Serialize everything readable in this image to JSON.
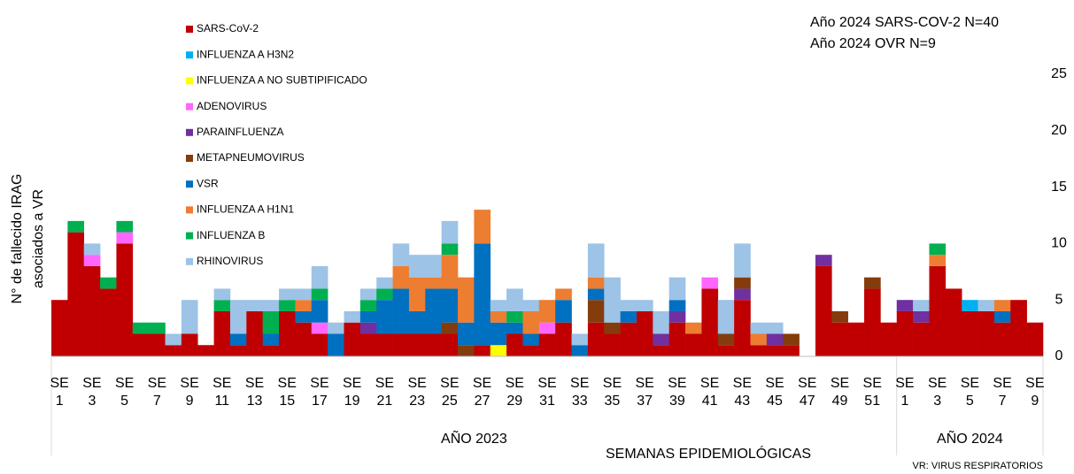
{
  "chart_data": {
    "type": "bar",
    "stacked": true,
    "y_label": "N° de fallecido IRAG asociados a VR",
    "x_label": "SEMANAS EPIDEMIOLÓGICAS",
    "annotations": [
      "Año 2024 SARS-COV-2 N=40",
      "Año 2024 OVR N=9",
      "VR: VIRUS RESPIRATORIOS"
    ],
    "groups": [
      {
        "label": "AÑO 2023",
        "count": 52
      },
      {
        "label": "AÑO 2024",
        "count": 9
      }
    ],
    "categories": [
      "SE 1",
      null,
      "SE 3",
      null,
      "SE 5",
      null,
      "SE 7",
      null,
      "SE 9",
      null,
      "SE 11",
      null,
      "SE 13",
      null,
      "SE 15",
      null,
      "SE 17",
      null,
      "SE 19",
      null,
      "SE 21",
      null,
      "SE 23",
      null,
      "SE 25",
      null,
      "SE 27",
      null,
      "SE 29",
      null,
      "SE 31",
      null,
      "SE 33",
      null,
      "SE 35",
      null,
      "SE 37",
      null,
      "SE 39",
      null,
      "SE 41",
      null,
      "SE 43",
      null,
      "SE 45",
      null,
      "SE 47",
      null,
      "SE 49",
      null,
      "SE 51",
      null,
      "SE 1",
      null,
      "SE 3",
      null,
      "SE 5",
      null,
      "SE 7",
      null,
      "SE 9"
    ],
    "series": [
      {
        "name": "SARS-CoV-2",
        "color": "#c00000",
        "values": [
          5,
          11,
          8,
          6,
          10,
          2,
          2,
          1,
          2,
          1,
          4,
          1,
          4,
          1,
          4,
          3,
          2,
          0,
          3,
          2,
          2,
          2,
          2,
          2,
          2,
          0,
          1,
          0,
          2,
          1,
          2,
          3,
          0,
          3,
          2,
          3,
          4,
          1,
          3,
          2,
          6,
          1,
          5,
          1,
          1,
          1,
          0,
          8,
          3,
          3,
          6,
          3,
          4,
          3,
          8,
          6,
          4,
          4,
          3,
          5,
          3
        ]
      },
      {
        "name": "INFLUENZA A H3N2",
        "color": "#00b0f0",
        "values": [
          0,
          0,
          0,
          0,
          0,
          0,
          0,
          0,
          0,
          0,
          0,
          0,
          0,
          0,
          0,
          0,
          0,
          0,
          0,
          0,
          0,
          0,
          0,
          0,
          0,
          0,
          0,
          0,
          0,
          0,
          0,
          0,
          0,
          0,
          0,
          0,
          0,
          0,
          0,
          0,
          0,
          0,
          0,
          0,
          0,
          0,
          0,
          0,
          0,
          0,
          0,
          0,
          0,
          0,
          0,
          0,
          1,
          0,
          0,
          0,
          0
        ]
      },
      {
        "name": "INFLUENZA A NO SUBTIPIFICADO",
        "color": "#ffff00",
        "values": [
          0,
          0,
          0,
          0,
          0,
          0,
          0,
          0,
          0,
          0,
          0,
          0,
          0,
          0,
          0,
          0,
          0,
          0,
          0,
          0,
          0,
          0,
          0,
          0,
          0,
          0,
          0,
          1,
          0,
          0,
          0,
          0,
          0,
          0,
          0,
          0,
          0,
          0,
          0,
          0,
          0,
          0,
          0,
          0,
          0,
          0,
          0,
          0,
          0,
          0,
          0,
          0,
          0,
          0,
          0,
          0,
          0,
          0,
          0,
          0,
          0
        ]
      },
      {
        "name": "ADENOVIRUS",
        "color": "#ff66ff",
        "values": [
          0,
          0,
          1,
          0,
          1,
          0,
          0,
          0,
          0,
          0,
          0,
          0,
          0,
          0,
          0,
          0,
          1,
          0,
          0,
          0,
          0,
          0,
          0,
          0,
          0,
          0,
          0,
          0,
          0,
          0,
          1,
          0,
          0,
          0,
          0,
          0,
          0,
          0,
          0,
          0,
          1,
          0,
          0,
          0,
          0,
          0,
          0,
          0,
          0,
          0,
          0,
          0,
          0,
          0,
          0,
          0,
          0,
          0,
          0,
          0,
          0
        ]
      },
      {
        "name": "PARAINFLUENZA",
        "color": "#7030a0",
        "values": [
          0,
          0,
          0,
          0,
          0,
          0,
          0,
          0,
          0,
          0,
          0,
          0,
          0,
          0,
          0,
          0,
          0,
          0,
          0,
          1,
          0,
          0,
          0,
          0,
          0,
          0,
          0,
          0,
          0,
          0,
          0,
          0,
          0,
          0,
          0,
          0,
          0,
          1,
          1,
          0,
          0,
          0,
          1,
          0,
          1,
          0,
          0,
          1,
          0,
          0,
          0,
          0,
          1,
          1,
          0,
          0,
          0,
          0,
          0,
          0,
          0
        ]
      },
      {
        "name": "METAPNEUMOVIRUS",
        "color": "#843c0c",
        "values": [
          0,
          0,
          0,
          0,
          0,
          0,
          0,
          0,
          0,
          0,
          0,
          0,
          0,
          0,
          0,
          0,
          0,
          0,
          0,
          0,
          0,
          0,
          0,
          0,
          1,
          1,
          0,
          0,
          0,
          0,
          0,
          0,
          0,
          2,
          1,
          0,
          0,
          0,
          0,
          0,
          0,
          1,
          1,
          0,
          0,
          1,
          0,
          0,
          1,
          0,
          1,
          0,
          0,
          0,
          0,
          0,
          0,
          0,
          0,
          0,
          0
        ]
      },
      {
        "name": "VSR",
        "color": "#0070c0",
        "values": [
          0,
          0,
          0,
          0,
          0,
          0,
          0,
          0,
          0,
          0,
          0,
          1,
          0,
          1,
          0,
          1,
          2,
          2,
          0,
          1,
          3,
          4,
          2,
          4,
          3,
          2,
          9,
          2,
          1,
          1,
          0,
          2,
          1,
          1,
          0,
          1,
          0,
          0,
          1,
          0,
          0,
          0,
          0,
          0,
          0,
          0,
          0,
          0,
          0,
          0,
          0,
          0,
          0,
          0,
          0,
          0,
          0,
          0,
          1,
          0,
          0
        ]
      },
      {
        "name": "INFLUENZA A H1N1",
        "color": "#ed7d31",
        "values": [
          0,
          0,
          0,
          0,
          0,
          0,
          0,
          0,
          0,
          0,
          0,
          0,
          0,
          0,
          0,
          1,
          0,
          0,
          0,
          0,
          0,
          2,
          3,
          1,
          3,
          4,
          3,
          1,
          0,
          2,
          2,
          1,
          0,
          1,
          0,
          0,
          0,
          0,
          0,
          1,
          0,
          0,
          0,
          1,
          0,
          0,
          0,
          0,
          0,
          0,
          0,
          0,
          0,
          0,
          1,
          0,
          0,
          0,
          1,
          0,
          0
        ]
      },
      {
        "name": "INFLUENZA B",
        "color": "#00b050",
        "values": [
          0,
          1,
          0,
          1,
          1,
          1,
          1,
          0,
          0,
          0,
          1,
          0,
          0,
          2,
          1,
          0,
          1,
          0,
          0,
          1,
          1,
          0,
          0,
          0,
          1,
          0,
          0,
          0,
          1,
          0,
          0,
          0,
          0,
          0,
          0,
          0,
          0,
          0,
          0,
          0,
          0,
          0,
          0,
          0,
          0,
          0,
          0,
          0,
          0,
          0,
          0,
          0,
          0,
          0,
          1,
          0,
          0,
          0,
          0,
          0,
          0
        ]
      },
      {
        "name": "RHINOVIRUS",
        "color": "#9dc3e6",
        "values": [
          0,
          0,
          1,
          0,
          0,
          0,
          0,
          1,
          3,
          0,
          1,
          3,
          1,
          1,
          1,
          1,
          2,
          1,
          1,
          1,
          1,
          2,
          2,
          2,
          2,
          0,
          0,
          1,
          2,
          1,
          0,
          0,
          1,
          3,
          4,
          1,
          1,
          2,
          2,
          0,
          0,
          3,
          3,
          1,
          1,
          0,
          0,
          0,
          0,
          0,
          0,
          0,
          0,
          1,
          0,
          0,
          0,
          1,
          0,
          0,
          0
        ]
      }
    ],
    "ylim": [
      0,
      25
    ],
    "yticks": [
      0,
      5,
      10,
      15,
      20,
      25
    ],
    "legend": "top-left"
  }
}
